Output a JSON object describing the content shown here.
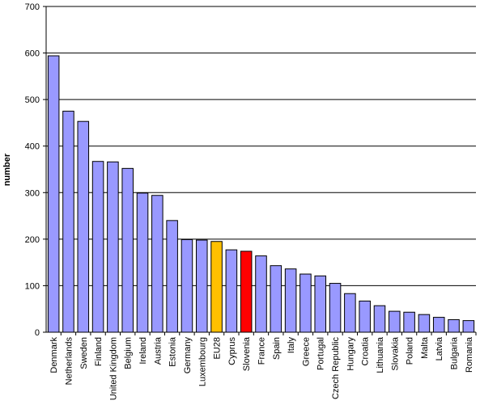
{
  "chart_data": {
    "type": "bar",
    "title": "",
    "xlabel": "",
    "ylabel": "number",
    "ylim": [
      0,
      700
    ],
    "yticks": [
      0,
      100,
      200,
      300,
      400,
      500,
      600,
      700
    ],
    "grid": true,
    "legend": "none",
    "colors": {
      "default": "#9999ff",
      "highlight_eu28": "#ffc000",
      "highlight_slovenia": "#ff0000",
      "gridline": "#000000",
      "outline": "#000000"
    },
    "categories": [
      "Denmark",
      "Netherlands",
      "Sweden",
      "Finland",
      "United Kingdom",
      "Belgium",
      "Ireland",
      "Austria",
      "Estonia",
      "Germany",
      "Luxembourg",
      "EU28",
      "Cyprus",
      "Slovenia",
      "France",
      "Spain",
      "Italy",
      "Greece",
      "Portugal",
      "Czech Republic",
      "Hungary",
      "Croatia",
      "Lithuania",
      "Slovakia",
      "Poland",
      "Malta",
      "Latvia",
      "Bulgaria",
      "Romania"
    ],
    "values": [
      594,
      475,
      453,
      367,
      366,
      352,
      299,
      294,
      240,
      199,
      198,
      195,
      177,
      174,
      164,
      143,
      136,
      125,
      121,
      105,
      83,
      67,
      57,
      45,
      43,
      38,
      32,
      27,
      25
    ],
    "bar_colors": [
      "default",
      "default",
      "default",
      "default",
      "default",
      "default",
      "default",
      "default",
      "default",
      "default",
      "default",
      "highlight_eu28",
      "default",
      "highlight_slovenia",
      "default",
      "default",
      "default",
      "default",
      "default",
      "default",
      "default",
      "default",
      "default",
      "default",
      "default",
      "default",
      "default",
      "default",
      "default"
    ]
  }
}
